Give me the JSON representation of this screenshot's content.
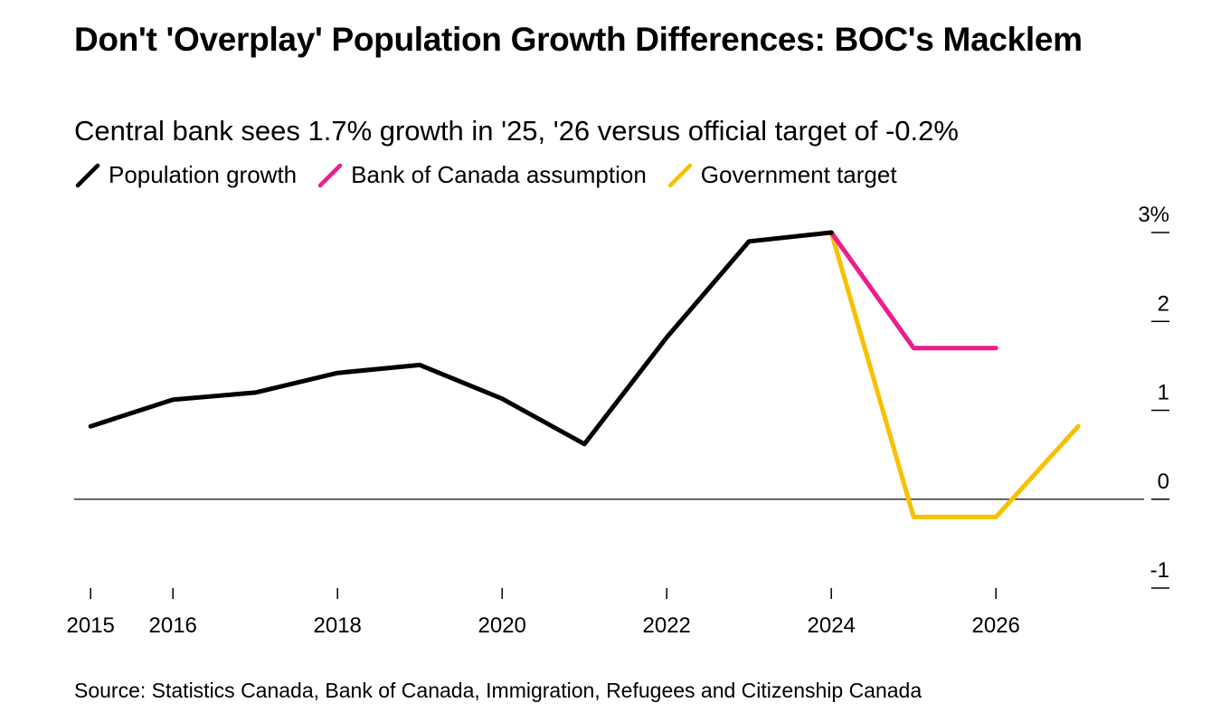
{
  "header": {
    "title": "Don't 'Overplay' Population Growth Differences: BOC's Macklem",
    "subtitle": "Central bank sees 1.7% growth in '25, '26 versus official target of -0.2%"
  },
  "legend": [
    {
      "label": "Population growth",
      "color": "#000000",
      "icon": "diagonal-line-icon"
    },
    {
      "label": "Bank of Canada assumption",
      "color": "#ee1c8c",
      "icon": "diagonal-line-icon"
    },
    {
      "label": "Government target",
      "color": "#f7c000",
      "icon": "diagonal-line-icon"
    }
  ],
  "source": "Source: Statistics Canada, Bank of Canada, Immigration, Refugees and Citizenship Canada",
  "chart_data": {
    "type": "line",
    "title": "Don't 'Overplay' Population Growth Differences: BOC's Macklem",
    "subtitle": "Central bank sees 1.7% growth in '25, '26 versus official target of -0.2%",
    "xlabel": "",
    "ylabel": "",
    "xlim": [
      2014.8,
      2027.8
    ],
    "ylim": [
      -1,
      3
    ],
    "x_ticks": [
      2015,
      2016,
      2018,
      2020,
      2022,
      2024,
      2026
    ],
    "x_tick_labels": [
      "2015",
      "2016",
      "2018",
      "2020",
      "2022",
      "2024",
      "2026"
    ],
    "y_ticks": [
      3,
      2,
      1,
      0,
      -1
    ],
    "y_tick_labels": [
      "3%",
      "2",
      "1",
      "0",
      "-1"
    ],
    "y_axis_position": "right",
    "grid": false,
    "zero_line": true,
    "legend_position": "top-left",
    "series": [
      {
        "name": "Population growth",
        "color": "#000000",
        "x": [
          2015,
          2016,
          2017,
          2018,
          2019,
          2020,
          2021,
          2022,
          2023,
          2024
        ],
        "y": [
          0.82,
          1.12,
          1.2,
          1.42,
          1.51,
          1.13,
          0.62,
          1.82,
          2.9,
          3.0
        ]
      },
      {
        "name": "Bank of Canada assumption",
        "color": "#ee1c8c",
        "x": [
          2024,
          2025,
          2026
        ],
        "y": [
          3.0,
          1.7,
          1.7
        ]
      },
      {
        "name": "Government target",
        "color": "#f7c000",
        "x": [
          2024,
          2025,
          2026,
          2027
        ],
        "y": [
          3.0,
          -0.2,
          -0.2,
          0.82
        ]
      }
    ]
  }
}
